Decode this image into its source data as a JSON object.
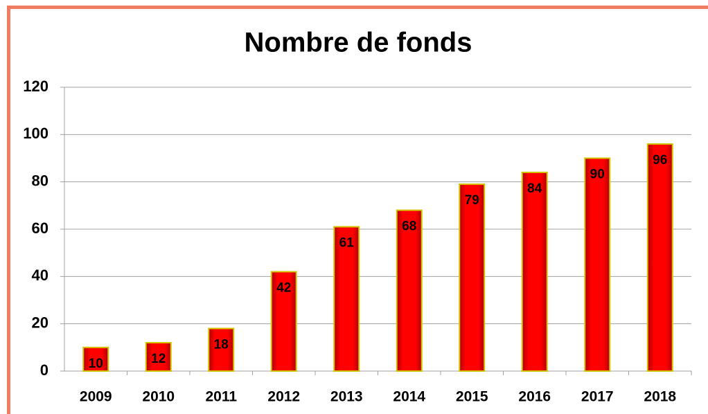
{
  "chart_data": {
    "type": "bar",
    "title": "Nombre de fonds",
    "categories": [
      "2009",
      "2010",
      "2011",
      "2012",
      "2013",
      "2014",
      "2015",
      "2016",
      "2017",
      "2018"
    ],
    "values": [
      10,
      12,
      18,
      42,
      61,
      68,
      79,
      84,
      90,
      96
    ],
    "color": "#ff0000",
    "ylim": [
      0,
      120
    ],
    "yticks": [
      0,
      20,
      40,
      60,
      80,
      100,
      120
    ],
    "grid": true
  }
}
